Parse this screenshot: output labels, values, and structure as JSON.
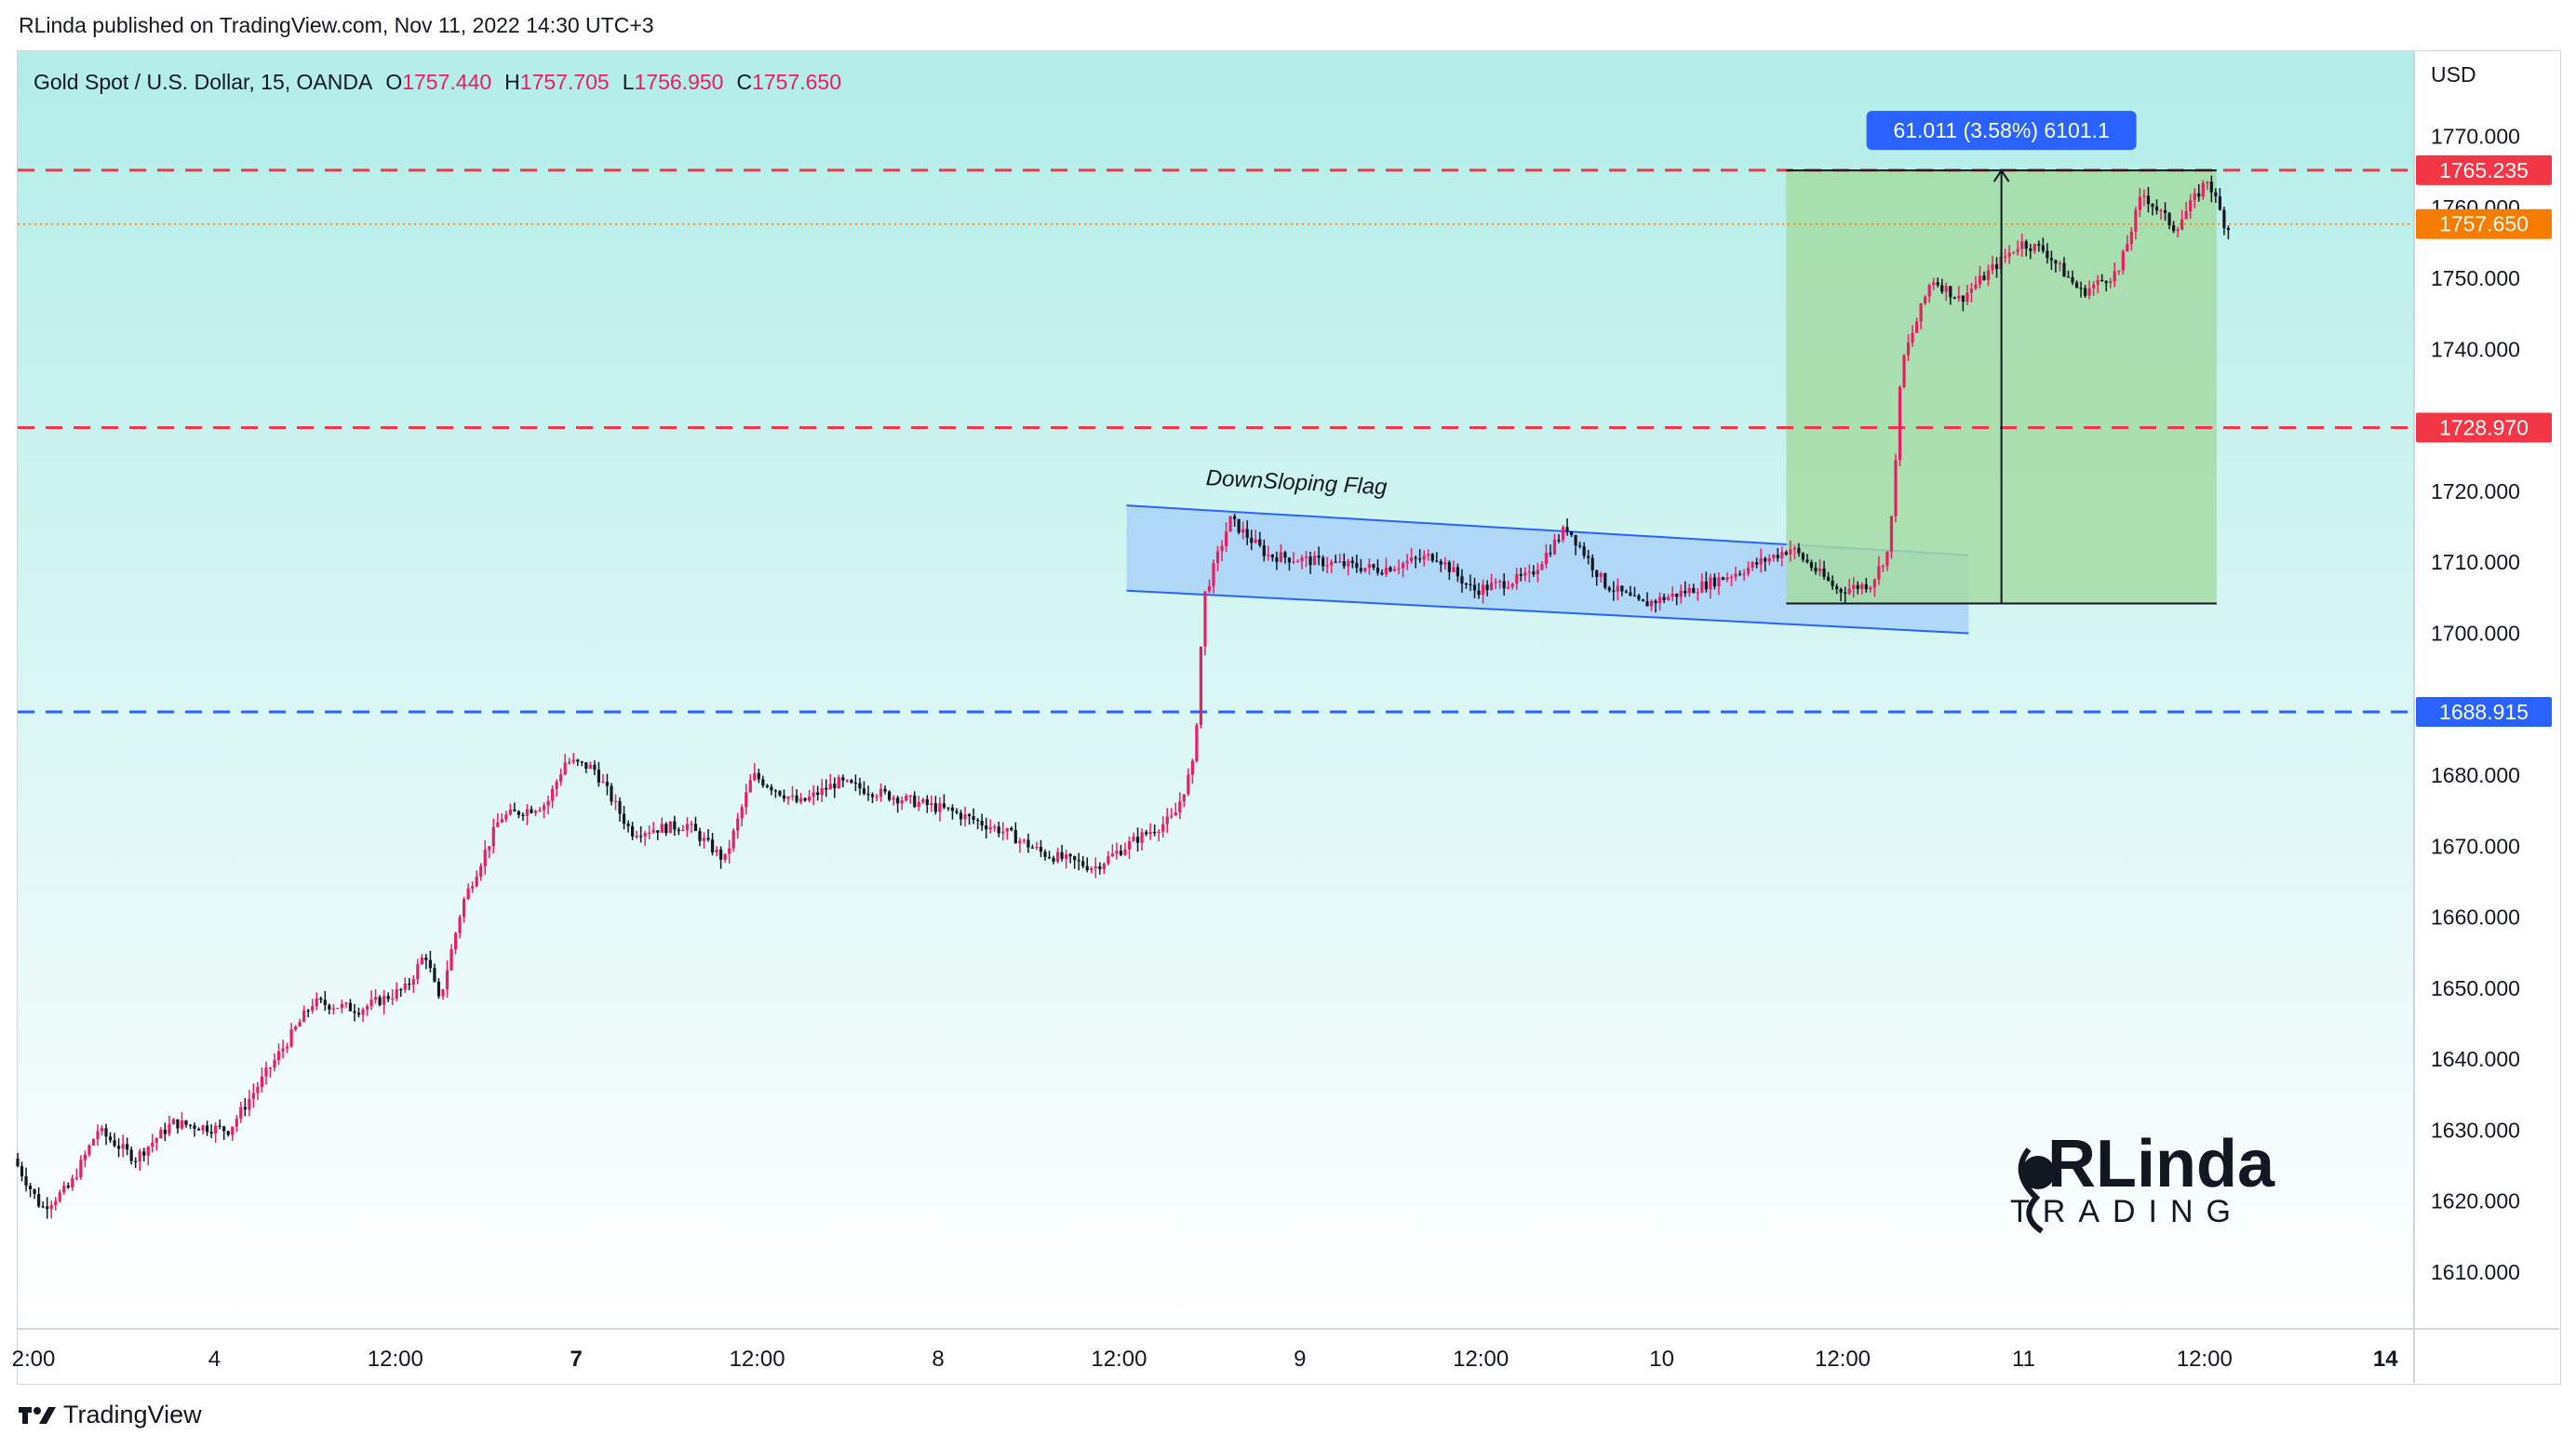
{
  "header": {
    "published_text": "RLinda published on TradingView.com, Nov 11, 2022 14:30 UTC+3"
  },
  "footer": {
    "brand": "TradingView"
  },
  "symbol_bar": {
    "name": "Gold Spot / U.S. Dollar, 15, OANDA",
    "open_label": "O",
    "open": "1757.440",
    "high_label": "H",
    "high": "1757.705",
    "low_label": "L",
    "low": "1756.950",
    "close_label": "C",
    "close": "1757.650"
  },
  "currency": "USD",
  "colors": {
    "up": "#e91e63",
    "down": "#131722",
    "red_level": "#f23645",
    "blue_level": "#2962ff",
    "current_price": "#f57c00",
    "flag_fill": "#a8d1f7",
    "flag_stroke": "#2962ff",
    "measure_fill": "#a5dca5",
    "measure_label_bg": "#2962ff",
    "bg_top": "#b2ede8",
    "bg_bottom": "#ffffff"
  },
  "chart_data": {
    "type": "candlestick",
    "ylim": [
      1602,
      1782
    ],
    "x_axis_labels": [
      "2:00",
      "4",
      "12:00",
      "7",
      "12:00",
      "8",
      "12:00",
      "9",
      "12:00",
      "10",
      "12:00",
      "11",
      "12:00",
      "14"
    ],
    "y_ticks": [
      "1770.000",
      "1760.000",
      "1750.000",
      "1740.000",
      "1730.000",
      "1720.000",
      "1710.000",
      "1700.000",
      "1690.000",
      "1680.000",
      "1670.000",
      "1660.000",
      "1650.000",
      "1640.000",
      "1630.000",
      "1620.000",
      "1610.000"
    ],
    "price_path": [
      {
        "t": 0,
        "p": 1626
      },
      {
        "t": 30,
        "p": 1619
      },
      {
        "t": 60,
        "p": 1622
      },
      {
        "t": 90,
        "p": 1630
      },
      {
        "t": 130,
        "p": 1626
      },
      {
        "t": 170,
        "p": 1631
      },
      {
        "t": 230,
        "p": 1630
      },
      {
        "t": 280,
        "p": 1640
      },
      {
        "t": 320,
        "p": 1648
      },
      {
        "t": 370,
        "p": 1647
      },
      {
        "t": 420,
        "p": 1650
      },
      {
        "t": 440,
        "p": 1655
      },
      {
        "t": 455,
        "p": 1648
      },
      {
        "t": 480,
        "p": 1662
      },
      {
        "t": 520,
        "p": 1674
      },
      {
        "t": 570,
        "p": 1676
      },
      {
        "t": 590,
        "p": 1682
      },
      {
        "t": 620,
        "p": 1681
      },
      {
        "t": 660,
        "p": 1672
      },
      {
        "t": 720,
        "p": 1673
      },
      {
        "t": 760,
        "p": 1668
      },
      {
        "t": 790,
        "p": 1680
      },
      {
        "t": 840,
        "p": 1676
      },
      {
        "t": 880,
        "p": 1679
      },
      {
        "t": 940,
        "p": 1677
      },
      {
        "t": 1000,
        "p": 1675
      },
      {
        "t": 1060,
        "p": 1672
      },
      {
        "t": 1100,
        "p": 1669
      },
      {
        "t": 1155,
        "p": 1667
      },
      {
        "t": 1200,
        "p": 1671
      },
      {
        "t": 1240,
        "p": 1674
      },
      {
        "t": 1262,
        "p": 1682
      },
      {
        "t": 1272,
        "p": 1705
      },
      {
        "t": 1300,
        "p": 1716
      },
      {
        "t": 1340,
        "p": 1711
      },
      {
        "t": 1400,
        "p": 1710
      },
      {
        "t": 1460,
        "p": 1709
      },
      {
        "t": 1520,
        "p": 1711
      },
      {
        "t": 1560,
        "p": 1706
      },
      {
        "t": 1620,
        "p": 1708
      },
      {
        "t": 1660,
        "p": 1715
      },
      {
        "t": 1700,
        "p": 1707
      },
      {
        "t": 1740,
        "p": 1704
      },
      {
        "t": 1790,
        "p": 1706
      },
      {
        "t": 1850,
        "p": 1709
      },
      {
        "t": 1900,
        "p": 1712
      },
      {
        "t": 1950,
        "p": 1706
      },
      {
        "t": 1985,
        "p": 1707
      },
      {
        "t": 2005,
        "p": 1712
      },
      {
        "t": 2018,
        "p": 1738
      },
      {
        "t": 2050,
        "p": 1750
      },
      {
        "t": 2080,
        "p": 1747
      },
      {
        "t": 2120,
        "p": 1752
      },
      {
        "t": 2145,
        "p": 1755
      },
      {
        "t": 2170,
        "p": 1754
      },
      {
        "t": 2210,
        "p": 1748
      },
      {
        "t": 2250,
        "p": 1751
      },
      {
        "t": 2275,
        "p": 1762
      },
      {
        "t": 2310,
        "p": 1757
      },
      {
        "t": 2345,
        "p": 1764
      },
      {
        "t": 2365,
        "p": 1757
      }
    ],
    "price_levels": [
      {
        "label": "1765.235",
        "value": 1765.235,
        "style": "red_dashed"
      },
      {
        "label": "1728.970",
        "value": 1728.97,
        "style": "red_dashed"
      },
      {
        "label": "1688.915",
        "value": 1688.915,
        "style": "blue_dashed"
      },
      {
        "label": "1757.650",
        "value": 1757.65,
        "style": "current_dotted"
      }
    ],
    "flag_annotation": {
      "text": "DownSloping Flag",
      "upper": [
        [
          1185,
          1718
        ],
        [
          2085,
          1711
        ]
      ],
      "lower": [
        [
          1185,
          1706
        ],
        [
          2085,
          1700
        ]
      ]
    },
    "measure_annotation": {
      "label": "61.011 (3.58%) 6101.1",
      "t_range": [
        1890,
        2350
      ],
      "p_range": [
        1704.2,
        1765.2
      ]
    },
    "t_max": 2560
  }
}
